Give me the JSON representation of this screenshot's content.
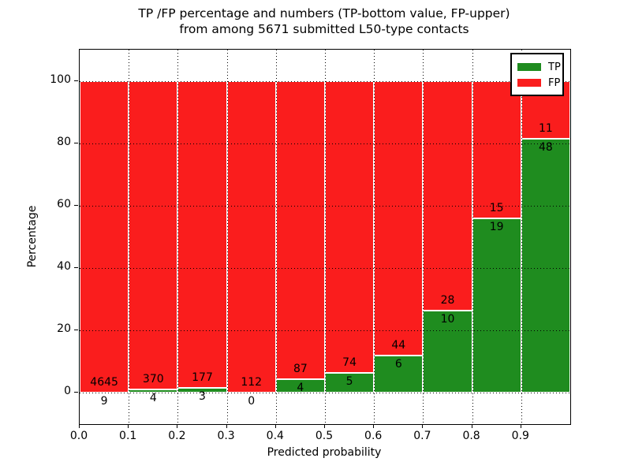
{
  "chart_data": {
    "type": "bar",
    "stacked": true,
    "normalized_to_percent": true,
    "title_line1": "TP /FP percentage and numbers (TP-bottom value, FP-upper)",
    "title_line2": "from among 5671 submitted L50-type contacts",
    "xlabel": "Predicted probability",
    "ylabel": "Percentage",
    "xlim": [
      0.0,
      1.0
    ],
    "ylim": [
      -10,
      110
    ],
    "x_tick_values": [
      0.0,
      0.1,
      0.2,
      0.3,
      0.4,
      0.5,
      0.6,
      0.7,
      0.8,
      0.9
    ],
    "x_tick_labels": [
      "0.0",
      "0.1",
      "0.2",
      "0.3",
      "0.4",
      "0.5",
      "0.6",
      "0.7",
      "0.8",
      "0.9"
    ],
    "y_tick_values": [
      0,
      20,
      40,
      60,
      80,
      100
    ],
    "y_tick_labels": [
      "0",
      "20",
      "40",
      "60",
      "80",
      "100"
    ],
    "grid": true,
    "grid_linestyle": "dotted",
    "bin_edges": [
      0.0,
      0.1,
      0.2,
      0.3,
      0.4,
      0.5,
      0.6,
      0.7,
      0.8,
      0.9,
      1.0
    ],
    "series": [
      {
        "name": "TP",
        "color": "#1f8c1f",
        "values": [
          9,
          4,
          3,
          0,
          4,
          5,
          6,
          10,
          19,
          48
        ]
      },
      {
        "name": "FP",
        "color": "#fa1d1d",
        "values": [
          4645,
          370,
          177,
          112,
          87,
          74,
          44,
          28,
          15,
          11
        ]
      }
    ],
    "bar_edge_color": "#ffffff",
    "legend": {
      "position": "upper right",
      "entries": [
        {
          "label": "TP",
          "color": "#1f8c1f"
        },
        {
          "label": "FP",
          "color": "#fa1d1d"
        }
      ]
    }
  }
}
